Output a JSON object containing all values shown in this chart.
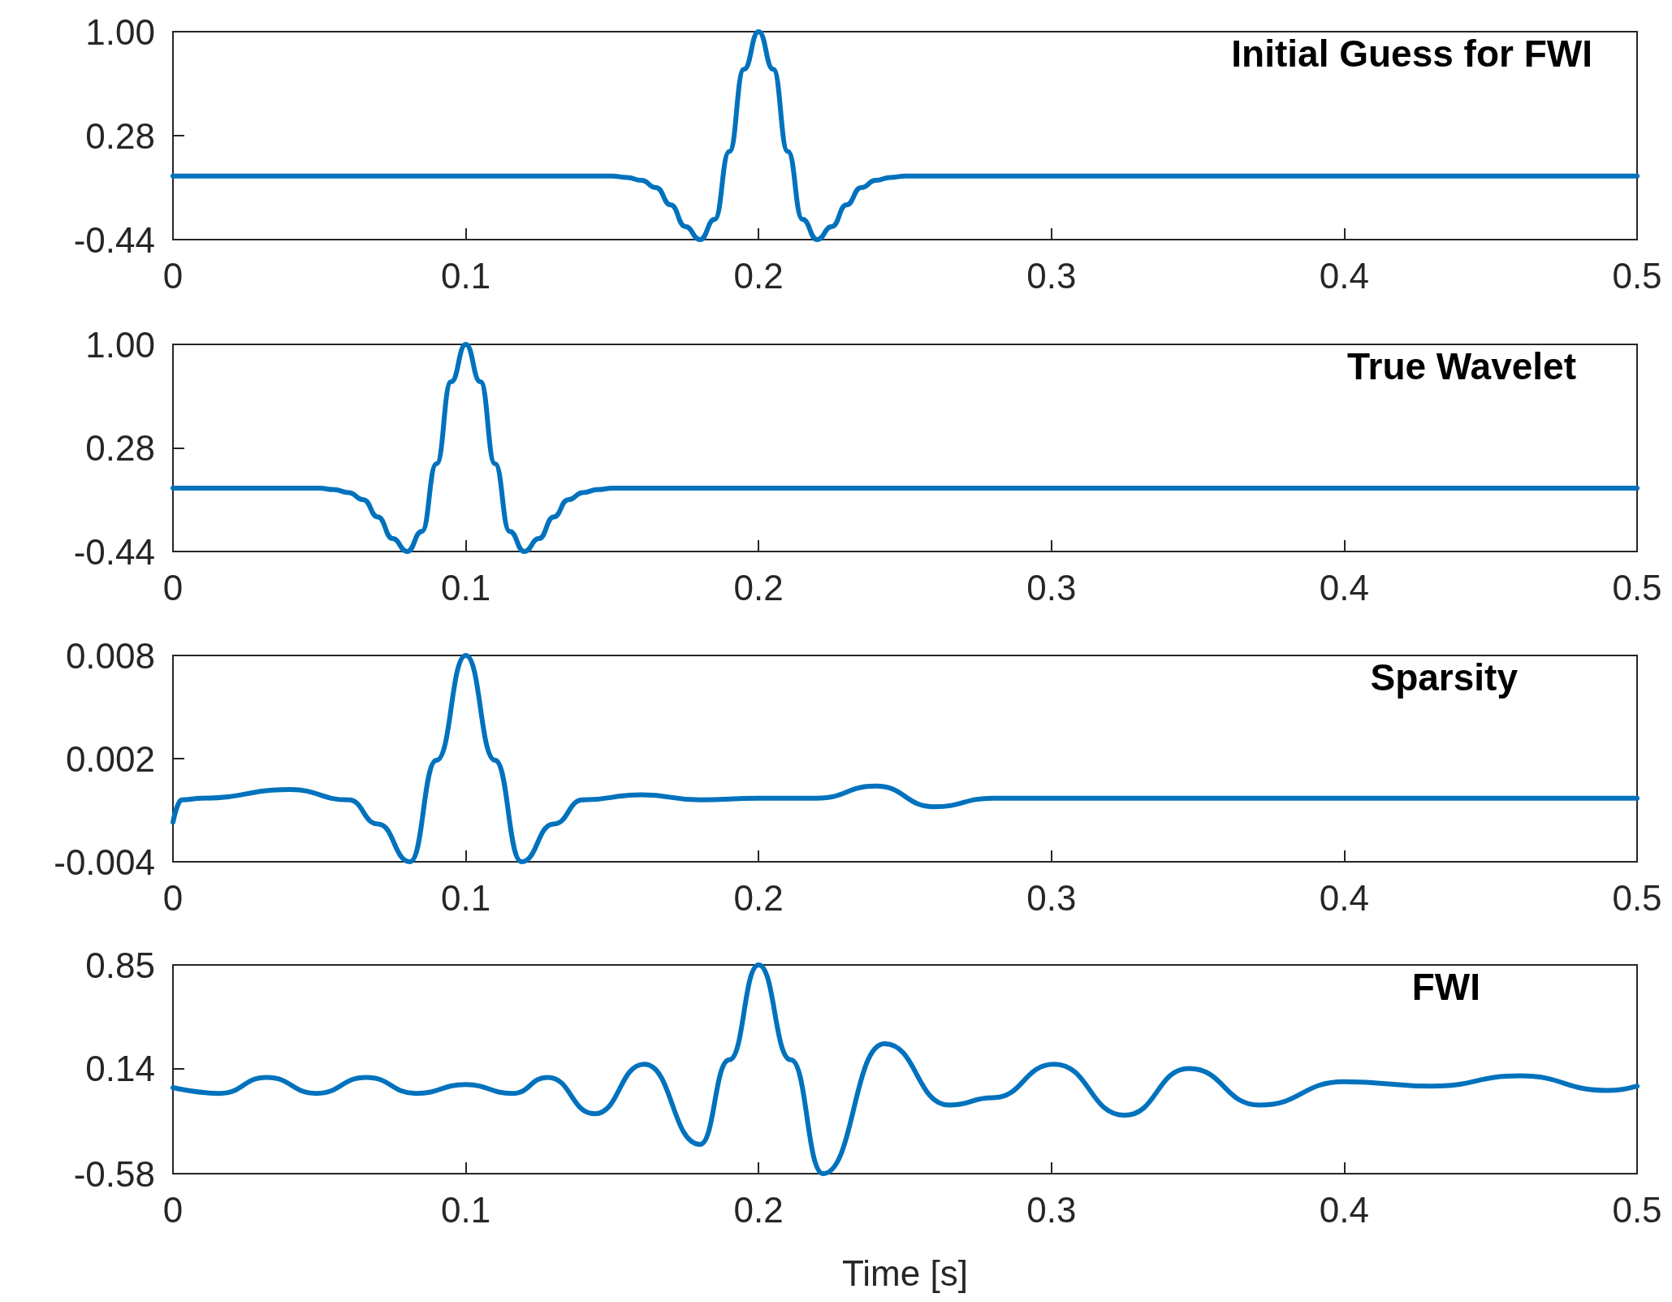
{
  "chart_data": [
    {
      "type": "line",
      "title": "Initial Guess for FWI",
      "xlim": [
        0,
        0.5
      ],
      "xticks": [
        0,
        0.1,
        0.2,
        0.3,
        0.4,
        0.5
      ],
      "ylim": [
        -0.44,
        1
      ],
      "yticks": [
        -0.44,
        0.28,
        {
          "value": 1,
          "label": "1.00"
        }
      ],
      "grid": false,
      "tick_labels": "xy",
      "series": [
        {
          "color": "#0072bd",
          "x": [
            0,
            0.15,
            0.155,
            0.16,
            0.165,
            0.17,
            0.175,
            0.18,
            0.185,
            0.19,
            0.195,
            0.2,
            0.205,
            0.21,
            0.215,
            0.22,
            0.225,
            0.23,
            0.235,
            0.24,
            0.245,
            0.25,
            0.5
          ],
          "values": [
            0,
            0,
            -0.01,
            -0.03,
            -0.08,
            -0.2,
            -0.35,
            -0.44,
            -0.3,
            0.17,
            0.74,
            1,
            0.74,
            0.17,
            -0.3,
            -0.44,
            -0.35,
            -0.2,
            -0.08,
            -0.03,
            -0.01,
            0,
            0
          ]
        }
      ]
    },
    {
      "type": "line",
      "title": "True Wavelet",
      "xlim": [
        0,
        0.5
      ],
      "xticks": [
        0,
        0.1,
        0.2,
        0.3,
        0.4,
        0.5
      ],
      "ylim": [
        -0.44,
        1
      ],
      "yticks": [
        -0.44,
        0.28,
        {
          "value": 1,
          "label": "1.00"
        }
      ],
      "grid": false,
      "series": [
        {
          "color": "#0072bd",
          "x": [
            0,
            0.05,
            0.055,
            0.06,
            0.065,
            0.07,
            0.075,
            0.08,
            0.085,
            0.09,
            0.095,
            0.1,
            0.105,
            0.11,
            0.115,
            0.12,
            0.125,
            0.13,
            0.135,
            0.14,
            0.145,
            0.15,
            0.5
          ],
          "values": [
            0,
            0,
            -0.01,
            -0.03,
            -0.08,
            -0.2,
            -0.35,
            -0.44,
            -0.3,
            0.17,
            0.74,
            1,
            0.74,
            0.17,
            -0.3,
            -0.44,
            -0.35,
            -0.2,
            -0.08,
            -0.03,
            -0.01,
            0,
            0
          ]
        }
      ]
    },
    {
      "type": "line",
      "title": "Sparsity",
      "xlim": [
        0,
        0.5
      ],
      "xticks": [
        0,
        0.1,
        0.2,
        0.3,
        0.4,
        0.5
      ],
      "ylim": [
        -0.004,
        0.008
      ],
      "yticks": [
        -0.004,
        0.002,
        0.008
      ],
      "grid": false,
      "series": [
        {
          "color": "#0072bd",
          "x": [
            0,
            0.003,
            0.01,
            0.04,
            0.06,
            0.07,
            0.081,
            0.09,
            0.1,
            0.11,
            0.119,
            0.13,
            0.14,
            0.16,
            0.18,
            0.2,
            0.22,
            0.24,
            0.26,
            0.28,
            0.5
          ],
          "values": [
            -0.0017,
            -0.0004,
            -0.0003,
            0.0002,
            -0.0004,
            -0.0018,
            -0.004,
            0.0019,
            0.008,
            0.0019,
            -0.004,
            -0.0018,
            -0.0004,
            -0.0001,
            -0.0004,
            -0.0003,
            -0.0003,
            0.0004,
            -0.0008,
            -0.0003,
            -0.0003
          ]
        }
      ]
    },
    {
      "type": "line",
      "title": "FWI",
      "xlabel": "Time [s]",
      "xlim": [
        0,
        0.5
      ],
      "xticks": [
        0,
        0.1,
        0.2,
        0.3,
        0.4,
        0.5
      ],
      "ylim": [
        -0.58,
        0.85
      ],
      "yticks": [
        -0.58,
        0.14,
        0.85
      ],
      "grid": false,
      "series": [
        {
          "color": "#0072bd",
          "x": [
            0,
            0.016,
            0.032,
            0.049,
            0.066,
            0.083,
            0.1,
            0.116,
            0.128,
            0.144,
            0.161,
            0.18,
            0.19,
            0.2,
            0.211,
            0.222,
            0.243,
            0.265,
            0.28,
            0.301,
            0.325,
            0.347,
            0.371,
            0.4,
            0.43,
            0.46,
            0.49,
            0.5
          ],
          "values": [
            0.01,
            -0.03,
            0.08,
            -0.03,
            0.08,
            -0.03,
            0.03,
            -0.03,
            0.08,
            -0.17,
            0.17,
            -0.38,
            0.2,
            0.85,
            0.2,
            -0.58,
            0.31,
            -0.11,
            -0.06,
            0.17,
            -0.18,
            0.14,
            -0.11,
            0.05,
            0.02,
            0.09,
            -0.01,
            0.02
          ]
        }
      ]
    }
  ]
}
